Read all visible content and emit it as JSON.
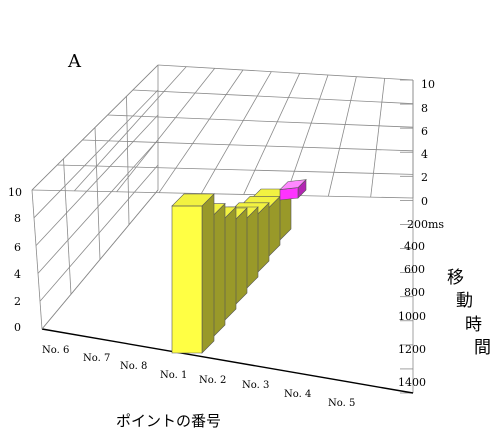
{
  "chart_data": {
    "type": "bar",
    "panel_label": "A",
    "xlabel": "ポイントの番号",
    "ylabel_chars": [
      "移",
      "動",
      "時",
      "間"
    ],
    "categories_front": [
      "No. 1",
      "No. 2",
      "No. 3",
      "No. 4",
      "No. 5"
    ],
    "categories_depth": [
      "No. 6",
      "No. 7",
      "No. 8"
    ],
    "left_ticks": [
      "10",
      "8",
      "6",
      "4",
      "2",
      "0"
    ],
    "right_ticks_top": [
      "10",
      "8",
      "6",
      "4",
      "2",
      "0"
    ],
    "right_ticks_bottom": [
      "200ms",
      "400",
      "600",
      "800",
      "1000",
      "1200",
      "1400"
    ],
    "series": [
      {
        "color": "#ffff44",
        "values": [
          1280,
          1040,
          860,
          700,
          560,
          450,
          360,
          280
        ]
      },
      {
        "color": "#ff33ff",
        "values": [
          60
        ]
      }
    ],
    "ylim": [
      0,
      1400
    ],
    "grid": true
  }
}
